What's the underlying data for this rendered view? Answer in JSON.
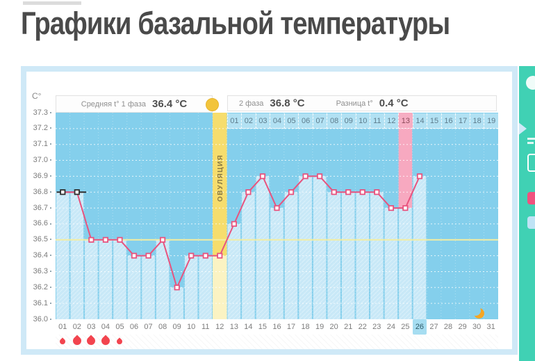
{
  "page": {
    "title": "Графики базальной температуры"
  },
  "summary": {
    "avg_phase1_label": "Средняя t° 1 фаза",
    "avg_phase1_value": "36.4 °C",
    "phase2_label": "2 фаза",
    "phase2_value": "36.8 °C",
    "diff_label": "Разница t°",
    "diff_value": "0.4 °C"
  },
  "chart_data": {
    "type": "line",
    "unit_label": "C°",
    "ylim": [
      36.0,
      37.3
    ],
    "ytick_step": 0.1,
    "days": 31,
    "values": [
      36.8,
      36.8,
      36.5,
      36.5,
      36.5,
      36.4,
      36.4,
      36.5,
      36.2,
      36.4,
      36.4,
      36.4,
      36.6,
      36.8,
      36.9,
      36.7,
      36.8,
      36.9,
      36.9,
      36.8,
      36.8,
      36.8,
      36.8,
      36.7,
      36.7,
      36.9,
      null,
      null,
      null,
      null,
      null
    ],
    "coverline": 36.5,
    "ovulation_day": 12,
    "ovulation_label": "ОВУЛЯЦИЯ",
    "highlight_day": 25,
    "current_day": 26,
    "phase2_start_day": 13,
    "phase2_day_labels": [
      "01",
      "02",
      "03",
      "04",
      "05",
      "06",
      "07",
      "08",
      "09",
      "10",
      "11",
      "12",
      "13",
      "14",
      "15",
      "16",
      "17",
      "18",
      "19"
    ],
    "black_marker_days": [
      1,
      2
    ],
    "menstruation_days": [
      {
        "day": 1,
        "size": "small"
      },
      {
        "day": 2,
        "size": "large"
      },
      {
        "day": 3,
        "size": "large"
      },
      {
        "day": 4,
        "size": "large"
      },
      {
        "day": 5,
        "size": "small"
      }
    ],
    "moon_day": 30,
    "colors": {
      "line": "#e8537e",
      "marker_border": "#e8537e",
      "marker_border_black": "#2e2e2e",
      "plot_bg": "#84cfec",
      "column_fill": "#c8e8f7",
      "ovulation_band": "#f6dd6d",
      "ovulation_band_pale": "#fbf3c3",
      "highlight_column": "#f7a9c0",
      "coverline": "#f3eda1",
      "current_day_bg": "#a6ddf1",
      "drop": "#f2444e",
      "moon": "#f5a623",
      "sidebar": "#40d1b4",
      "panel_frame": "#cfe9f7"
    }
  }
}
